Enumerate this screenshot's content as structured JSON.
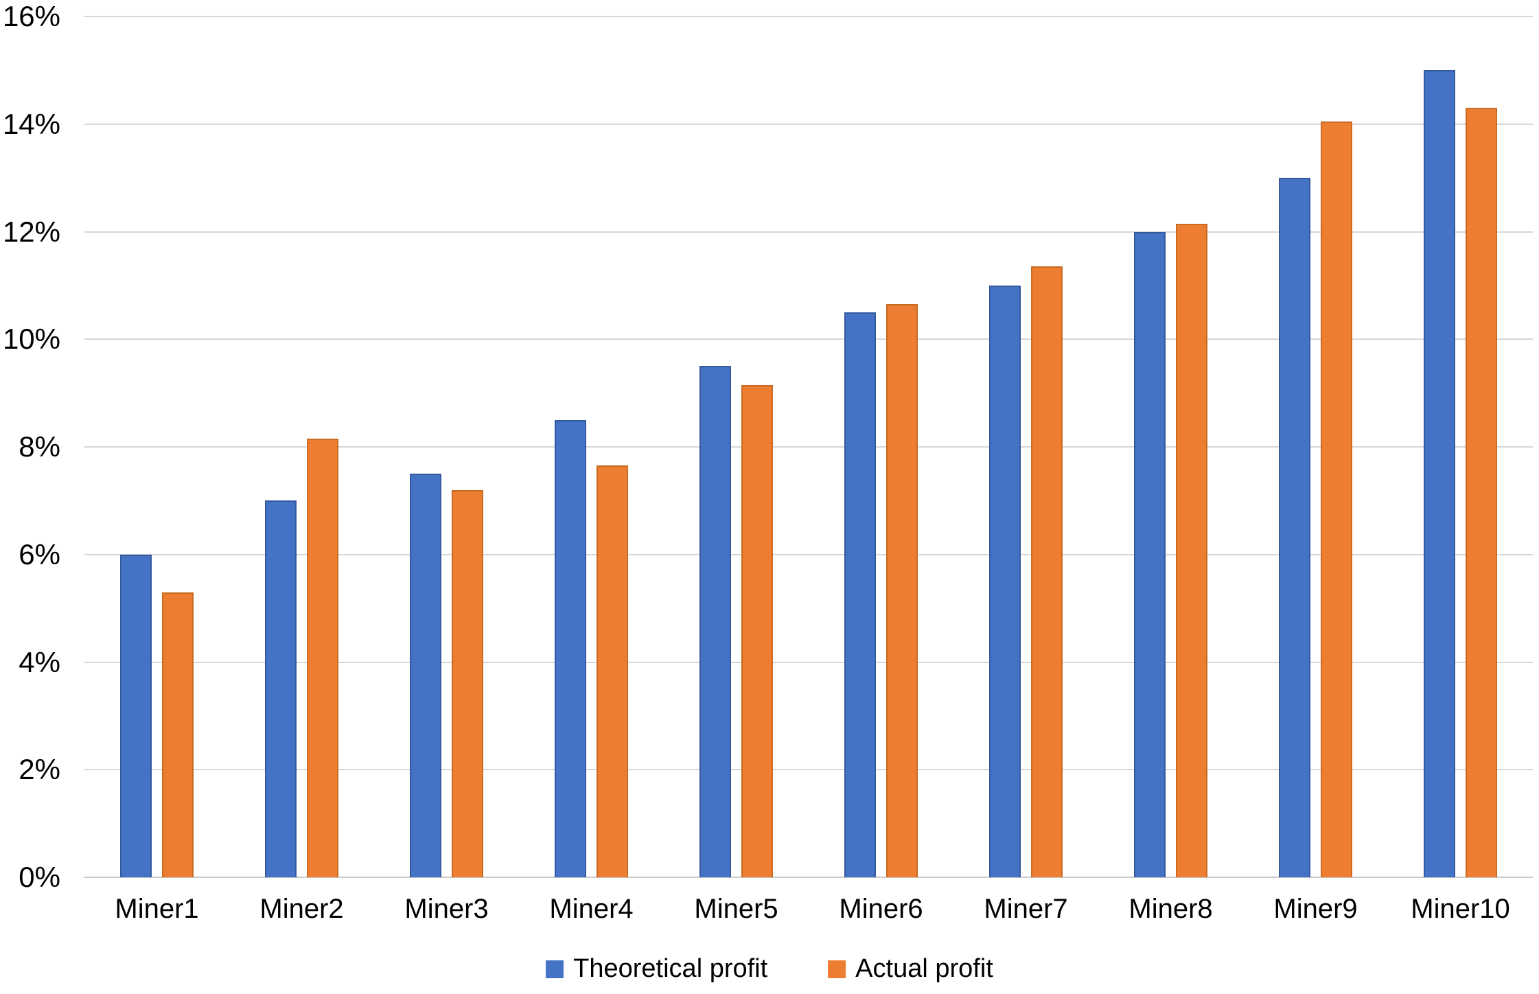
{
  "chart_data": {
    "type": "bar",
    "categories": [
      "Miner1",
      "Miner2",
      "Miner3",
      "Miner4",
      "Miner5",
      "Miner6",
      "Miner7",
      "Miner8",
      "Miner9",
      "Miner10"
    ],
    "series": [
      {
        "name": "Theoretical profit",
        "color": "#4472C4",
        "border_color": "#35599F",
        "values": [
          6.0,
          7.0,
          7.5,
          8.5,
          9.5,
          10.5,
          11.0,
          12.0,
          13.0,
          15.0
        ]
      },
      {
        "name": "Actual profit",
        "color": "#ED7D31",
        "border_color": "#C96A20",
        "values": [
          5.3,
          8.15,
          7.2,
          7.65,
          9.15,
          10.65,
          11.35,
          12.15,
          14.05,
          14.3
        ]
      }
    ],
    "title": "",
    "xlabel": "",
    "ylabel": "",
    "ylim": [
      0,
      16
    ],
    "ytick_step": 2,
    "ytick_labels": [
      "0%",
      "2%",
      "4%",
      "6%",
      "8%",
      "10%",
      "12%",
      "14%",
      "16%"
    ],
    "grid": true,
    "legend_position": "bottom",
    "gridline_color": "#D6D6D6",
    "axis_line_color": "#C9C9C9",
    "background": "#FFFFFF",
    "text_color": "#000000"
  }
}
